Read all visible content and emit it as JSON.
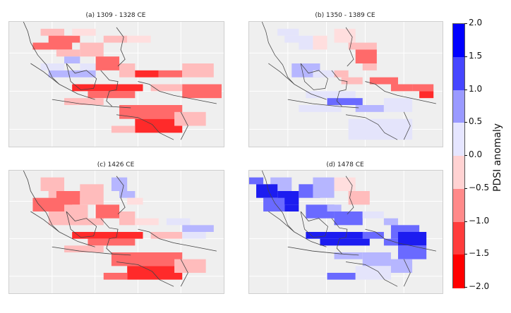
{
  "panels": [
    {
      "title": "(a) 1309 - 1328 CE",
      "key": "a"
    },
    {
      "title": "(b) 1350 - 1389 CE",
      "key": "b"
    },
    {
      "title": "(c) 1426 CE",
      "key": "c"
    },
    {
      "title": "(d) 1478 CE",
      "key": "d"
    }
  ],
  "colorbar": {
    "label": "PDSI anomaly",
    "ticks": [
      "2.0",
      "1.5",
      "1.0",
      "0.5",
      "0.0",
      "−0.5",
      "−1.0",
      "−1.5",
      "−2.0"
    ],
    "range": [
      -2.0,
      2.0
    ],
    "colors": [
      "#ff0000",
      "#ff3c3c",
      "#ff8a8a",
      "#ffd2d2",
      "#e6e6ff",
      "#9a9aff",
      "#4646ff",
      "#0000ff"
    ]
  },
  "map_data": {
    "region": "Maritime Southeast Asia",
    "variable": "PDSI anomaly"
  }
}
